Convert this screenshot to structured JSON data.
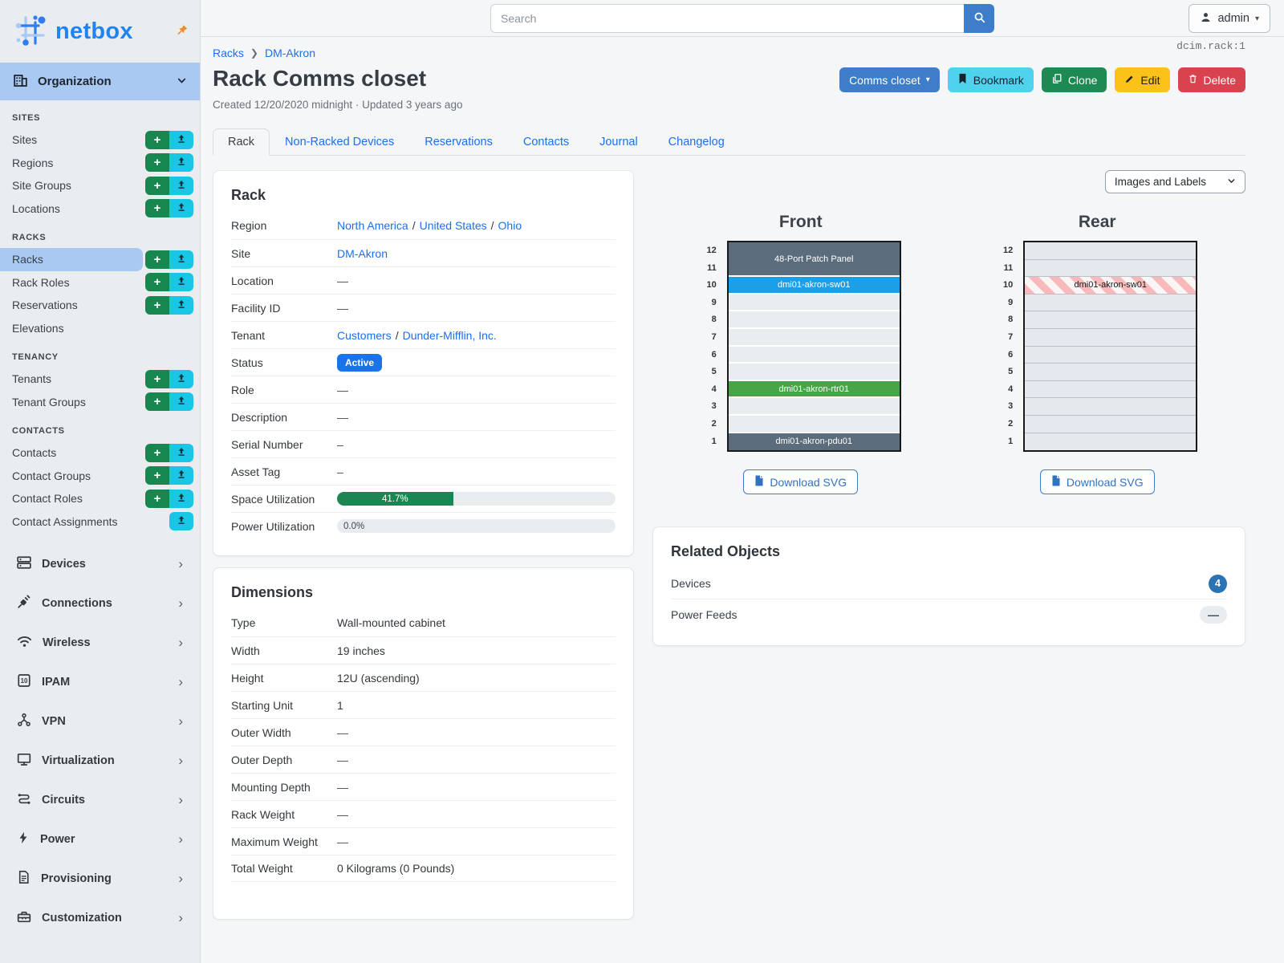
{
  "colors": {
    "link_blue": "#1b6ff2",
    "primary_button_blue": "#3d7dca",
    "status_badge_blue": "#1a73e8",
    "bookmark_cyan": "#4fd2ee",
    "clone_green": "#1d8a54",
    "edit_yellow": "#fdc21a",
    "delete_red": "#d94350",
    "add_green": "#17864f",
    "import_cyan": "#1ac6e6",
    "active_highlight": "#a9c9f2",
    "progress_green": "#1d8551",
    "unit_slate": "#5b6c7c",
    "unit_blue": "#1d9fe8",
    "unit_green": "#47a447",
    "stripe_pink": "#f7b9b9",
    "count_badge_blue": "#2a73b4",
    "brand_blue": "#1f83f2",
    "pin_orange": "#f28b24"
  },
  "header": {
    "search_placeholder": "Search",
    "user": "admin"
  },
  "sidebar": {
    "brand": "netbox",
    "module_header": {
      "label": "Organization"
    },
    "groups": [
      {
        "heading": "SITES",
        "items": [
          {
            "label": "Sites",
            "add": true,
            "import": true
          },
          {
            "label": "Regions",
            "add": true,
            "import": true
          },
          {
            "label": "Site Groups",
            "add": true,
            "import": true
          },
          {
            "label": "Locations",
            "add": true,
            "import": true
          }
        ]
      },
      {
        "heading": "RACKS",
        "items": [
          {
            "label": "Racks",
            "add": true,
            "import": true,
            "active": true
          },
          {
            "label": "Rack Roles",
            "add": true,
            "import": true
          },
          {
            "label": "Reservations",
            "add": true,
            "import": true
          },
          {
            "label": "Elevations"
          }
        ]
      },
      {
        "heading": "TENANCY",
        "items": [
          {
            "label": "Tenants",
            "add": true,
            "import": true
          },
          {
            "label": "Tenant Groups",
            "add": true,
            "import": true
          }
        ]
      },
      {
        "heading": "CONTACTS",
        "items": [
          {
            "label": "Contacts",
            "add": true,
            "import": true
          },
          {
            "label": "Contact Groups",
            "add": true,
            "import": true
          },
          {
            "label": "Contact Roles",
            "add": true,
            "import": true
          },
          {
            "label": "Contact Assignments",
            "import": true
          }
        ]
      }
    ],
    "modules": [
      {
        "label": "Devices",
        "icon": "devices-icon"
      },
      {
        "label": "Connections",
        "icon": "plug-icon"
      },
      {
        "label": "Wireless",
        "icon": "wifi-icon"
      },
      {
        "label": "IPAM",
        "icon": "ipam-icon"
      },
      {
        "label": "VPN",
        "icon": "vpn-icon"
      },
      {
        "label": "Virtualization",
        "icon": "monitor-icon"
      },
      {
        "label": "Circuits",
        "icon": "circuits-icon"
      },
      {
        "label": "Power",
        "icon": "bolt-icon"
      },
      {
        "label": "Provisioning",
        "icon": "document-icon"
      },
      {
        "label": "Customization",
        "icon": "toolbox-icon"
      },
      {
        "label": "",
        "icon": "gear-icon",
        "partial": true
      }
    ]
  },
  "page": {
    "breadcrumb": [
      "Racks",
      "DM-Akron"
    ],
    "title": "Rack Comms closet",
    "meta": "Created 12/20/2020 midnight · Updated 3 years ago",
    "object_id": "dcim.rack:1",
    "actions": {
      "rename_label": "Comms closet",
      "bookmark_label": "Bookmark",
      "clone_label": "Clone",
      "edit_label": "Edit",
      "delete_label": "Delete"
    },
    "tabs": [
      {
        "label": "Rack",
        "active": true
      },
      {
        "label": "Non-Racked Devices"
      },
      {
        "label": "Reservations"
      },
      {
        "label": "Contacts"
      },
      {
        "label": "Journal"
      },
      {
        "label": "Changelog"
      }
    ]
  },
  "rack_panel": {
    "title": "Rack",
    "rows": [
      {
        "label": "Region",
        "kind": "links",
        "parts": [
          "North America",
          "United States",
          "Ohio"
        ]
      },
      {
        "label": "Site",
        "kind": "links",
        "parts": [
          "DM-Akron"
        ]
      },
      {
        "label": "Location",
        "kind": "dash",
        "text": "—"
      },
      {
        "label": "Facility ID",
        "kind": "dash",
        "text": "—"
      },
      {
        "label": "Tenant",
        "kind": "links",
        "parts": [
          "Customers",
          "Dunder-Mifflin, Inc."
        ]
      },
      {
        "label": "Status",
        "kind": "badge",
        "text": "Active"
      },
      {
        "label": "Role",
        "kind": "dash",
        "text": "—"
      },
      {
        "label": "Description",
        "kind": "dash",
        "text": "—"
      },
      {
        "label": "Serial Number",
        "kind": "dash",
        "text": "–"
      },
      {
        "label": "Asset Tag",
        "kind": "dash",
        "text": "–"
      },
      {
        "label": "Space Utilization",
        "kind": "progress",
        "percent": 41.7,
        "text": "41.7%"
      },
      {
        "label": "Power Utilization",
        "kind": "progress",
        "percent": 0,
        "text": "0.0%"
      }
    ]
  },
  "dimensions_panel": {
    "title": "Dimensions",
    "rows": [
      {
        "label": "Type",
        "kind": "text",
        "text": "Wall-mounted cabinet"
      },
      {
        "label": "Width",
        "kind": "text",
        "text": "19 inches"
      },
      {
        "label": "Height",
        "kind": "text",
        "text": "12U (ascending)"
      },
      {
        "label": "Starting Unit",
        "kind": "text",
        "text": "1"
      },
      {
        "label": "Outer Width",
        "kind": "dash",
        "text": "—"
      },
      {
        "label": "Outer Depth",
        "kind": "dash",
        "text": "—"
      },
      {
        "label": "Mounting Depth",
        "kind": "dash",
        "text": "—"
      },
      {
        "label": "Rack Weight",
        "kind": "dash",
        "text": "—"
      },
      {
        "label": "Maximum Weight",
        "kind": "dash",
        "text": "—"
      },
      {
        "label": "Total Weight",
        "kind": "text",
        "text": "0 Kilograms (0 Pounds)"
      }
    ]
  },
  "elevations": {
    "view_select": "Images and Labels",
    "download_label": "Download SVG",
    "units_total": 12,
    "front": {
      "title": "Front",
      "units": [
        {
          "span": 2,
          "label": "48-Port Patch Panel",
          "style": "slate"
        },
        {
          "span": 1,
          "label": "dmi01-akron-sw01",
          "style": "blue"
        },
        {
          "span": 5,
          "style": "empty"
        },
        {
          "span": 1,
          "label": "dmi01-akron-rtr01",
          "style": "green"
        },
        {
          "span": 2,
          "style": "empty"
        },
        {
          "span": 1,
          "label": "dmi01-akron-pdu01",
          "style": "slate"
        }
      ]
    },
    "rear": {
      "title": "Rear",
      "units": [
        {
          "span": 2,
          "style": "empty"
        },
        {
          "span": 1,
          "label": "dmi01-akron-sw01",
          "style": "striped"
        },
        {
          "span": 9,
          "style": "empty"
        }
      ]
    }
  },
  "related_objects": {
    "title": "Related Objects",
    "rows": [
      {
        "label": "Devices",
        "badge": "4",
        "badge_kind": "count"
      },
      {
        "label": "Power Feeds",
        "badge": "—",
        "badge_kind": "empty"
      }
    ]
  }
}
